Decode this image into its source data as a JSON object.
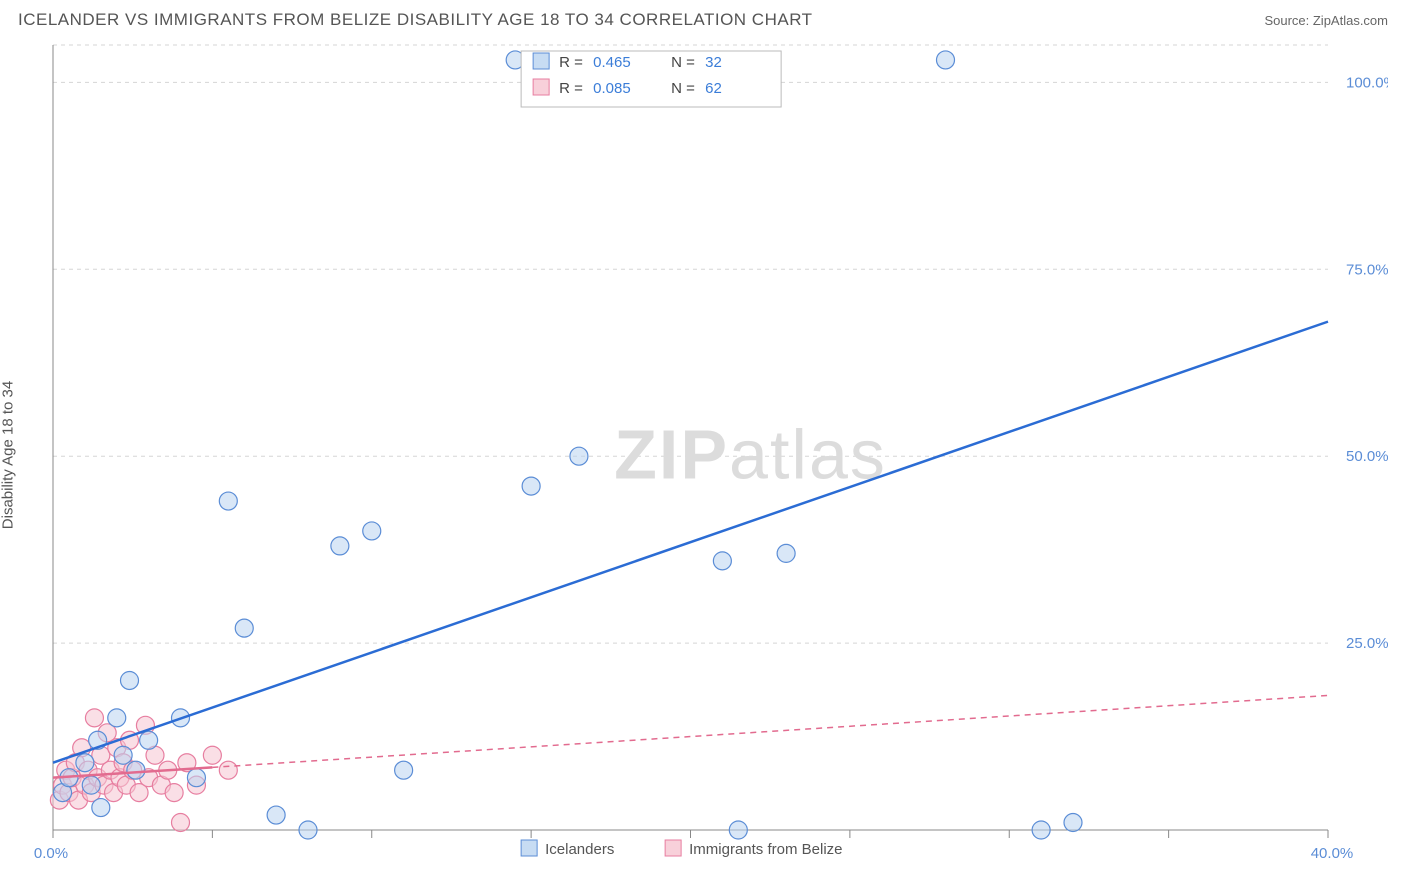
{
  "title": "ICELANDER VS IMMIGRANTS FROM BELIZE DISABILITY AGE 18 TO 34 CORRELATION CHART",
  "source_label": "Source: ",
  "source_name": "ZipAtlas.com",
  "y_axis_label": "Disability Age 18 to 34",
  "watermark": "ZIPatlas",
  "chart": {
    "type": "scatter",
    "background_color": "#ffffff",
    "grid_color": "#d5d5d5",
    "axis_color": "#888888",
    "xlim": [
      0,
      40
    ],
    "ylim": [
      0,
      105
    ],
    "x_ticks": [
      0,
      5,
      10,
      15,
      20,
      25,
      30,
      35,
      40
    ],
    "y_ticks": [
      25,
      50,
      75,
      100
    ],
    "x_tick_labels": {
      "0": "0.0%",
      "40": "40.0%"
    },
    "y_tick_labels": {
      "25": "25.0%",
      "50": "50.0%",
      "75": "75.0%",
      "100": "100.0%"
    },
    "marker_radius": 9,
    "marker_stroke_width": 1.2,
    "line_width": 2.5,
    "series": [
      {
        "name": "Icelanders",
        "fill": "#b9d3f0",
        "fill_opacity": 0.55,
        "stroke": "#5b8dd6",
        "line_color": "#2b6cd4",
        "R": "0.465",
        "N": "32",
        "trend": {
          "x1": 0,
          "y1": 9,
          "x2": 40,
          "y2": 68,
          "dash": null,
          "solid_until_x": 40
        },
        "points": [
          [
            0.3,
            5
          ],
          [
            0.5,
            7
          ],
          [
            1.0,
            9
          ],
          [
            1.2,
            6
          ],
          [
            1.4,
            12
          ],
          [
            1.5,
            3
          ],
          [
            2.0,
            15
          ],
          [
            2.2,
            10
          ],
          [
            2.4,
            20
          ],
          [
            2.6,
            8
          ],
          [
            3.0,
            12
          ],
          [
            4.0,
            15
          ],
          [
            4.5,
            7
          ],
          [
            5.5,
            44
          ],
          [
            6.0,
            27
          ],
          [
            7.0,
            2
          ],
          [
            8.0,
            0
          ],
          [
            9.0,
            38
          ],
          [
            10.0,
            40
          ],
          [
            11.0,
            8
          ],
          [
            14.5,
            103
          ],
          [
            15.0,
            46
          ],
          [
            16.5,
            50
          ],
          [
            21.0,
            36
          ],
          [
            21.5,
            0
          ],
          [
            23.0,
            37
          ],
          [
            28.0,
            103
          ],
          [
            31.0,
            0
          ],
          [
            32.0,
            1
          ]
        ]
      },
      {
        "name": "Immigrants from Belize",
        "fill": "#f6c4d1",
        "fill_opacity": 0.55,
        "stroke": "#e77ea0",
        "line_color": "#e26b8f",
        "R": "0.085",
        "N": "62",
        "trend": {
          "x1": 0,
          "y1": 7,
          "x2": 40,
          "y2": 18,
          "dash": "6 5",
          "solid_until_x": 5
        },
        "points": [
          [
            0.2,
            4
          ],
          [
            0.3,
            6
          ],
          [
            0.4,
            8
          ],
          [
            0.5,
            5
          ],
          [
            0.6,
            7
          ],
          [
            0.7,
            9
          ],
          [
            0.8,
            4
          ],
          [
            0.9,
            11
          ],
          [
            1.0,
            6
          ],
          [
            1.1,
            8
          ],
          [
            1.2,
            5
          ],
          [
            1.3,
            15
          ],
          [
            1.4,
            7
          ],
          [
            1.5,
            10
          ],
          [
            1.6,
            6
          ],
          [
            1.7,
            13
          ],
          [
            1.8,
            8
          ],
          [
            1.9,
            5
          ],
          [
            2.0,
            11
          ],
          [
            2.1,
            7
          ],
          [
            2.2,
            9
          ],
          [
            2.3,
            6
          ],
          [
            2.4,
            12
          ],
          [
            2.5,
            8
          ],
          [
            2.7,
            5
          ],
          [
            2.9,
            14
          ],
          [
            3.0,
            7
          ],
          [
            3.2,
            10
          ],
          [
            3.4,
            6
          ],
          [
            3.6,
            8
          ],
          [
            3.8,
            5
          ],
          [
            4.0,
            1
          ],
          [
            4.2,
            9
          ],
          [
            4.5,
            6
          ],
          [
            5.0,
            10
          ],
          [
            5.5,
            8
          ]
        ]
      }
    ],
    "bottom_legend": [
      {
        "label": "Icelanders",
        "fill": "#b9d3f0",
        "stroke": "#5b8dd6"
      },
      {
        "label": "Immigrants from Belize",
        "fill": "#f6c4d1",
        "stroke": "#e77ea0"
      }
    ]
  },
  "legend_box": {
    "R_label": "R =",
    "N_label": "N ="
  }
}
